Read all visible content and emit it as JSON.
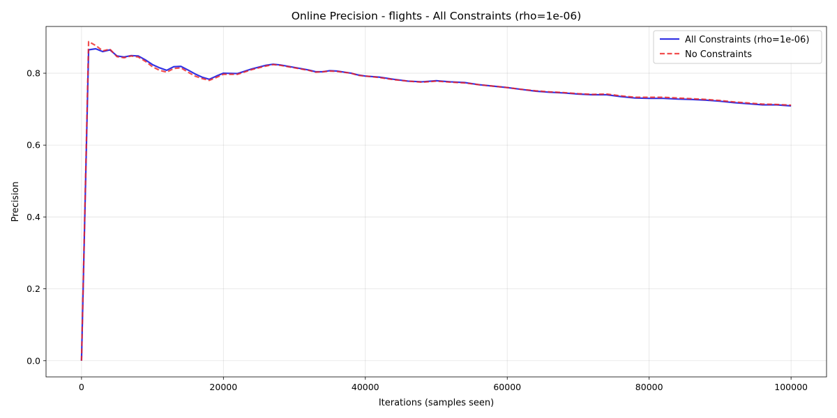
{
  "chart_data": {
    "type": "line",
    "title": "Online Precision - flights - All Constraints (rho=1e-06)",
    "xlabel": "Iterations (samples seen)",
    "ylabel": "Precision",
    "xlim": [
      -5000,
      105000
    ],
    "ylim": [
      -0.045,
      0.93
    ],
    "xticks": [
      0,
      20000,
      40000,
      60000,
      80000,
      100000
    ],
    "yticks": [
      0.0,
      0.2,
      0.4,
      0.6,
      0.8
    ],
    "xtick_labels": [
      "0",
      "20000",
      "40000",
      "60000",
      "80000",
      "100000"
    ],
    "ytick_labels": [
      "0.0",
      "0.2",
      "0.4",
      "0.6",
      "0.8"
    ],
    "grid": true,
    "legend_position": "top-right",
    "series": [
      {
        "name": "All Constraints (rho=1e-06)",
        "color": "#0000dd",
        "style": "solid",
        "x": [
          0,
          1000,
          2000,
          3000,
          4000,
          5000,
          6000,
          7000,
          8000,
          9000,
          10000,
          11000,
          12000,
          13000,
          14000,
          15000,
          16000,
          17000,
          18000,
          19000,
          20000,
          22000,
          24000,
          26000,
          27000,
          28000,
          30000,
          32000,
          33000,
          34000,
          35000,
          36000,
          38000,
          39000,
          40000,
          42000,
          44000,
          46000,
          48000,
          50000,
          52000,
          54000,
          56000,
          58000,
          60000,
          62000,
          64000,
          66000,
          68000,
          70000,
          72000,
          74000,
          76000,
          78000,
          80000,
          82000,
          84000,
          86000,
          88000,
          90000,
          92000,
          94000,
          96000,
          98000,
          100000
        ],
        "y": [
          0.0,
          0.865,
          0.868,
          0.86,
          0.865,
          0.848,
          0.845,
          0.849,
          0.848,
          0.837,
          0.824,
          0.815,
          0.808,
          0.818,
          0.819,
          0.809,
          0.798,
          0.789,
          0.783,
          0.792,
          0.8,
          0.799,
          0.812,
          0.822,
          0.825,
          0.823,
          0.816,
          0.809,
          0.804,
          0.804,
          0.807,
          0.806,
          0.8,
          0.795,
          0.792,
          0.789,
          0.783,
          0.778,
          0.776,
          0.779,
          0.776,
          0.774,
          0.768,
          0.764,
          0.76,
          0.755,
          0.75,
          0.747,
          0.745,
          0.742,
          0.74,
          0.74,
          0.735,
          0.731,
          0.73,
          0.73,
          0.728,
          0.727,
          0.725,
          0.722,
          0.718,
          0.715,
          0.712,
          0.712,
          0.709
        ]
      },
      {
        "name": "No Constraints",
        "color": "#ee2222",
        "style": "dashed",
        "x": [
          0,
          1000,
          2000,
          3000,
          4000,
          5000,
          6000,
          7000,
          8000,
          9000,
          10000,
          11000,
          12000,
          13000,
          14000,
          15000,
          16000,
          17000,
          18000,
          19000,
          20000,
          22000,
          24000,
          26000,
          27000,
          28000,
          30000,
          32000,
          33000,
          34000,
          35000,
          36000,
          38000,
          39000,
          40000,
          42000,
          44000,
          46000,
          48000,
          50000,
          52000,
          54000,
          56000,
          58000,
          60000,
          62000,
          64000,
          66000,
          68000,
          70000,
          72000,
          74000,
          76000,
          78000,
          80000,
          82000,
          84000,
          86000,
          88000,
          90000,
          92000,
          94000,
          96000,
          98000,
          100000
        ],
        "y": [
          0.0,
          0.888,
          0.877,
          0.862,
          0.867,
          0.846,
          0.843,
          0.848,
          0.845,
          0.833,
          0.818,
          0.808,
          0.803,
          0.813,
          0.815,
          0.803,
          0.792,
          0.785,
          0.78,
          0.788,
          0.797,
          0.797,
          0.81,
          0.82,
          0.824,
          0.822,
          0.815,
          0.808,
          0.803,
          0.804,
          0.806,
          0.805,
          0.8,
          0.794,
          0.792,
          0.788,
          0.782,
          0.778,
          0.775,
          0.778,
          0.775,
          0.773,
          0.768,
          0.764,
          0.76,
          0.755,
          0.751,
          0.748,
          0.746,
          0.743,
          0.741,
          0.742,
          0.737,
          0.733,
          0.733,
          0.733,
          0.731,
          0.729,
          0.727,
          0.724,
          0.72,
          0.717,
          0.714,
          0.713,
          0.711
        ]
      }
    ]
  }
}
